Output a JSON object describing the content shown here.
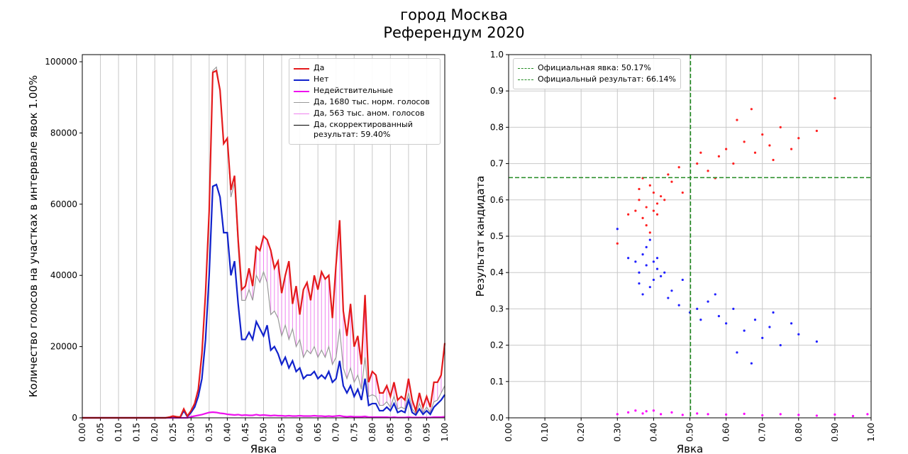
{
  "suptitle": [
    "город Москва",
    "Референдум 2020"
  ],
  "chart_data": [
    {
      "type": "line",
      "xlabel": "Явка",
      "ylabel": "Количество голосов на участках в интервале явок 1.00%",
      "grid": "x",
      "legend": "upper right",
      "xlim": [
        0,
        1
      ],
      "ylim": [
        0,
        102000
      ],
      "xticks": [
        {
          "value": 0,
          "label": "0.00"
        },
        0.05,
        {
          "value": 0.1,
          "label": "0.10"
        },
        0.15,
        {
          "value": 0.2,
          "label": "0.20"
        },
        0.25,
        {
          "value": 0.3,
          "label": "0.30"
        },
        0.35,
        {
          "value": 0.4,
          "label": "0.40"
        },
        0.45,
        {
          "value": 0.5,
          "label": "0.50"
        },
        0.55,
        {
          "value": 0.6,
          "label": "0.60"
        },
        0.65,
        {
          "value": 0.7,
          "label": "0.70"
        },
        0.75,
        {
          "value": 0.8,
          "label": "0.80"
        },
        0.85,
        {
          "value": 0.9,
          "label": "0.90"
        },
        0.95,
        {
          "value": 1,
          "label": "1.00"
        }
      ],
      "yticks": [
        0,
        20000,
        40000,
        60000,
        80000,
        100000
      ],
      "x": [
        0,
        0.01,
        0.02,
        0.03,
        0.04,
        0.05,
        0.06,
        0.07,
        0.08,
        0.09,
        0.1,
        0.11,
        0.12,
        0.13,
        0.14,
        0.15,
        0.16,
        0.17,
        0.18,
        0.19,
        0.2,
        0.21,
        0.22,
        0.23,
        0.24,
        0.25,
        0.26,
        0.27,
        0.28,
        0.29,
        0.3,
        0.31,
        0.32,
        0.33,
        0.34,
        0.35,
        0.36,
        0.37,
        0.38,
        0.39,
        0.4,
        0.41,
        0.42,
        0.43,
        0.44,
        0.45,
        0.46,
        0.47,
        0.48,
        0.49,
        0.5,
        0.51,
        0.52,
        0.53,
        0.54,
        0.55,
        0.56,
        0.57,
        0.58,
        0.59,
        0.6,
        0.61,
        0.62,
        0.63,
        0.64,
        0.65,
        0.66,
        0.67,
        0.68,
        0.69,
        0.7,
        0.71,
        0.72,
        0.73,
        0.74,
        0.75,
        0.76,
        0.77,
        0.78,
        0.79,
        0.8,
        0.81,
        0.82,
        0.83,
        0.84,
        0.85,
        0.86,
        0.87,
        0.88,
        0.89,
        0.9,
        0.91,
        0.92,
        0.93,
        0.94,
        0.95,
        0.96,
        0.97,
        0.98,
        0.99,
        1
      ],
      "series": [
        {
          "name": "Да",
          "color": "#e41a1c",
          "width": 2.2,
          "values": [
            0,
            0,
            0,
            0,
            0,
            0,
            0,
            0,
            0,
            0,
            0,
            0,
            0,
            0,
            0,
            0,
            0,
            0,
            0,
            0,
            0,
            0,
            0,
            0,
            200,
            500,
            300,
            200,
            2500,
            500,
            2000,
            4000,
            8000,
            18000,
            35000,
            58000,
            97000,
            97500,
            92000,
            77000,
            78500,
            64000,
            68000,
            50000,
            36000,
            37000,
            42000,
            37000,
            48000,
            47000,
            51000,
            50000,
            47000,
            42000,
            44000,
            35000,
            40000,
            44000,
            32000,
            37000,
            29000,
            36000,
            38000,
            33000,
            40000,
            36000,
            41000,
            39000,
            40000,
            28000,
            43000,
            55500,
            30000,
            23000,
            32000,
            20000,
            23000,
            15000,
            34500,
            10000,
            13000,
            12000,
            7000,
            7000,
            9000,
            6000,
            10000,
            5000,
            6000,
            5000,
            11000,
            5000,
            2000,
            7000,
            3000,
            6000,
            3000,
            10000,
            10000,
            12000,
            21000
          ]
        },
        {
          "name": "Нет",
          "color": "#1122cc",
          "width": 2.2,
          "values": [
            0,
            0,
            0,
            0,
            0,
            0,
            0,
            0,
            0,
            0,
            0,
            0,
            0,
            0,
            0,
            0,
            0,
            0,
            0,
            0,
            0,
            0,
            0,
            0,
            100,
            300,
            200,
            100,
            2000,
            300,
            1500,
            3000,
            6000,
            11000,
            22000,
            40000,
            65000,
            65500,
            62000,
            52000,
            52000,
            40000,
            44000,
            32000,
            22000,
            22000,
            24000,
            22000,
            27000,
            25000,
            23000,
            26000,
            19000,
            20000,
            18000,
            15000,
            17000,
            14000,
            16000,
            13000,
            14000,
            11000,
            12000,
            12000,
            13000,
            11000,
            12000,
            11000,
            13000,
            10000,
            11000,
            16000,
            9000,
            7000,
            9000,
            6000,
            8000,
            5000,
            11000,
            3500,
            4000,
            4000,
            2000,
            2000,
            3000,
            2000,
            4000,
            1500,
            2000,
            1500,
            5000,
            1500,
            800,
            2500,
            1000,
            2000,
            1000,
            3000,
            4000,
            5000,
            6500
          ]
        },
        {
          "name": "Недействительные",
          "color": "#ee11ee",
          "width": 2.2,
          "values": [
            0,
            0,
            0,
            0,
            0,
            0,
            0,
            0,
            0,
            0,
            0,
            0,
            0,
            0,
            0,
            0,
            0,
            0,
            0,
            0,
            0,
            0,
            0,
            0,
            0,
            0,
            0,
            0,
            0,
            0,
            300,
            500,
            700,
            900,
            1200,
            1500,
            1600,
            1500,
            1300,
            1200,
            1000,
            900,
            800,
            900,
            700,
            800,
            700,
            700,
            900,
            700,
            800,
            700,
            600,
            700,
            600,
            600,
            500,
            600,
            500,
            500,
            600,
            500,
            500,
            500,
            600,
            500,
            500,
            400,
            500,
            400,
            500,
            600,
            400,
            300,
            400,
            300,
            300,
            300,
            400,
            200,
            200,
            200,
            200,
            200,
            200,
            100,
            200,
            100,
            100,
            100,
            200,
            100,
            100,
            100,
            100,
            100,
            100,
            200,
            200,
            200,
            300
          ]
        },
        {
          "name": "Да, 1680 тыс. норм. голосов",
          "color": "#999999",
          "width": 1.2,
          "values": [
            0,
            0,
            0,
            0,
            0,
            0,
            0,
            0,
            0,
            0,
            0,
            0,
            0,
            0,
            0,
            0,
            0,
            0,
            0,
            0,
            0,
            0,
            0,
            0,
            200,
            500,
            300,
            200,
            2500,
            500,
            2000,
            4000,
            8000,
            18000,
            35000,
            58000,
            97500,
            98500,
            92000,
            77000,
            78500,
            62000,
            66000,
            48000,
            33000,
            33000,
            36000,
            33000,
            40000,
            38000,
            41000,
            38000,
            29000,
            30000,
            28000,
            23000,
            26000,
            22000,
            25000,
            20000,
            22000,
            17000,
            19000,
            18000,
            20000,
            17000,
            19000,
            17000,
            20000,
            15000,
            17000,
            25000,
            14000,
            11000,
            14000,
            10000,
            12000,
            8000,
            17000,
            6000,
            6500,
            6000,
            3500,
            3500,
            4500,
            3000,
            6000,
            2500,
            3000,
            2500,
            7000,
            2500,
            1200,
            4000,
            1500,
            3000,
            1500,
            4500,
            5000,
            7000,
            9000
          ]
        }
      ],
      "legend_extra": [
        {
          "name": "Да, 563 тыс. аном. голосов",
          "color": "#ee82ee"
        },
        {
          "name": "Да, скорректированный результат: 59.40%",
          "color": "#000000"
        }
      ]
    },
    {
      "type": "scatter",
      "xlabel": "Явка",
      "ylabel": "Результат кандидата",
      "grid": "both",
      "legend": "upper left",
      "xlim": [
        0,
        1
      ],
      "ylim": [
        0,
        1
      ],
      "xticks": [
        {
          "value": 0,
          "label": "0.00"
        },
        {
          "value": 0.1,
          "label": "0.10"
        },
        {
          "value": 0.2,
          "label": "0.20"
        },
        {
          "value": 0.3,
          "label": "0.30"
        },
        {
          "value": 0.4,
          "label": "0.40"
        },
        {
          "value": 0.5,
          "label": "0.50"
        },
        {
          "value": 0.6,
          "label": "0.60"
        },
        {
          "value": 0.7,
          "label": "0.70"
        },
        {
          "value": 0.8,
          "label": "0.80"
        },
        {
          "value": 0.9,
          "label": "0.90"
        },
        {
          "value": 1,
          "label": "1.00"
        }
      ],
      "yticks": [
        {
          "value": 0,
          "label": "0.0"
        },
        0.1,
        0.2,
        0.3,
        0.4,
        0.5,
        0.6,
        0.7,
        0.8,
        0.9,
        {
          "value": 1,
          "label": "1.0"
        }
      ],
      "reference_lines": [
        {
          "label": "Официальная явка: 50.17%",
          "axis": "x",
          "value": 0.5017,
          "color": "#228b22"
        },
        {
          "label": "Официальный результат: 66.14%",
          "axis": "y",
          "value": 0.6614,
          "color": "#228b22"
        }
      ],
      "series": [
        {
          "color": "#ff2020",
          "x": [
            0.36,
            0.38,
            0.4,
            0.37,
            0.41,
            0.39,
            0.35,
            0.42,
            0.38,
            0.4,
            0.43,
            0.36,
            0.39,
            0.41,
            0.37,
            0.45,
            0.48,
            0.52,
            0.55,
            0.58,
            0.6,
            0.62,
            0.65,
            0.68,
            0.7,
            0.72,
            0.75,
            0.78,
            0.8,
            0.63,
            0.57,
            0.53,
            0.47,
            0.67,
            0.73,
            0.85,
            0.9,
            0.33,
            0.3,
            0.44
          ],
          "values": [
            0.6,
            0.58,
            0.62,
            0.55,
            0.59,
            0.64,
            0.57,
            0.61,
            0.53,
            0.57,
            0.6,
            0.63,
            0.51,
            0.56,
            0.66,
            0.65,
            0.62,
            0.7,
            0.68,
            0.72,
            0.74,
            0.7,
            0.76,
            0.73,
            0.78,
            0.75,
            0.8,
            0.74,
            0.77,
            0.82,
            0.66,
            0.73,
            0.69,
            0.85,
            0.71,
            0.79,
            0.88,
            0.56,
            0.48,
            0.67
          ]
        },
        {
          "color": "#2020ff",
          "x": [
            0.36,
            0.38,
            0.4,
            0.37,
            0.41,
            0.39,
            0.35,
            0.42,
            0.38,
            0.4,
            0.43,
            0.36,
            0.39,
            0.41,
            0.37,
            0.45,
            0.48,
            0.52,
            0.55,
            0.58,
            0.6,
            0.62,
            0.65,
            0.68,
            0.7,
            0.72,
            0.75,
            0.78,
            0.8,
            0.63,
            0.57,
            0.53,
            0.47,
            0.67,
            0.73,
            0.85,
            0.33,
            0.3,
            0.44,
            0.5
          ],
          "values": [
            0.4,
            0.42,
            0.38,
            0.45,
            0.41,
            0.36,
            0.43,
            0.39,
            0.47,
            0.43,
            0.4,
            0.37,
            0.49,
            0.44,
            0.34,
            0.35,
            0.38,
            0.3,
            0.32,
            0.28,
            0.26,
            0.3,
            0.24,
            0.27,
            0.22,
            0.25,
            0.2,
            0.26,
            0.23,
            0.18,
            0.34,
            0.27,
            0.31,
            0.15,
            0.29,
            0.21,
            0.44,
            0.52,
            0.33,
            0.29
          ]
        },
        {
          "color": "#ff00ff",
          "x": [
            0.3,
            0.33,
            0.35,
            0.37,
            0.38,
            0.4,
            0.42,
            0.45,
            0.48,
            0.52,
            0.55,
            0.6,
            0.65,
            0.7,
            0.75,
            0.8,
            0.85,
            0.9,
            0.95,
            0.99
          ],
          "values": [
            0.01,
            0.015,
            0.02,
            0.012,
            0.018,
            0.02,
            0.01,
            0.015,
            0.008,
            0.012,
            0.01,
            0.009,
            0.011,
            0.007,
            0.01,
            0.008,
            0.006,
            0.009,
            0.005,
            0.01
          ]
        }
      ]
    }
  ]
}
